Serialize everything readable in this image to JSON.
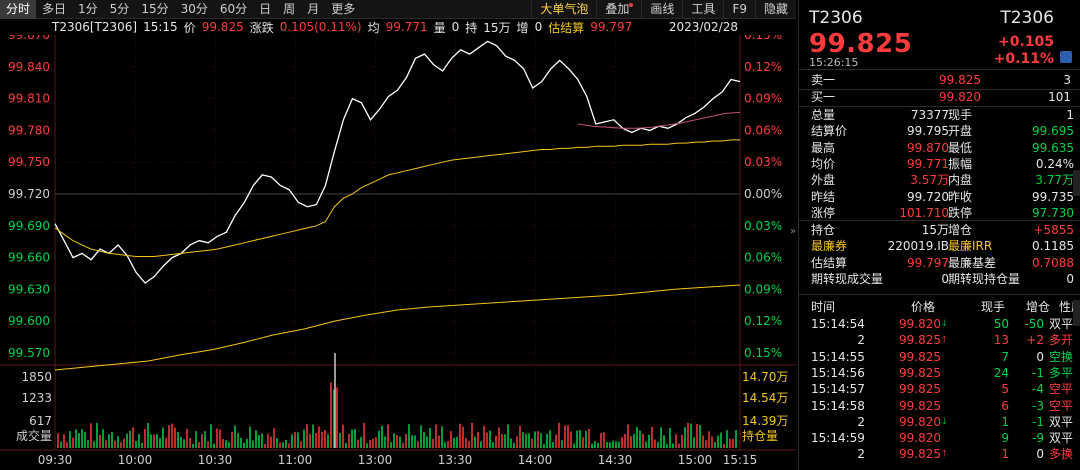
{
  "toolbar": {
    "left_tabs": [
      "分时",
      "多日",
      "1分",
      "5分",
      "15分",
      "30分",
      "60分",
      "日",
      "周",
      "月",
      "更多"
    ],
    "active_tab": "分时",
    "right_buttons": [
      "大单气泡",
      "叠加",
      "画线",
      "工具",
      "F9",
      "隐藏"
    ]
  },
  "info_strip": {
    "symbol": "T2306[T2306]",
    "time": "15:15",
    "price_label": "价",
    "price": "99.825",
    "change_label": "涨跌",
    "change": "0.105(0.11%)",
    "avg_label": "均",
    "avg": "99.771",
    "vol_label": "量",
    "vol": "0",
    "oi_label": "持",
    "oi": "15万",
    "inc_label": "增",
    "inc": "0",
    "est_label": "估结算",
    "est": "99.797",
    "date": "2023/02/28"
  },
  "chart_data": {
    "type": "line",
    "title": "",
    "x_ticks": [
      "09:30",
      "10:00",
      "10:30",
      "11:00",
      "13:00",
      "13:30",
      "14:00",
      "14:30",
      "15:00",
      "15:15"
    ],
    "price_axis": [
      "99.870",
      "99.840",
      "99.810",
      "99.780",
      "99.750",
      "99.720",
      "99.690",
      "99.660",
      "99.630",
      "99.600",
      "99.570"
    ],
    "pct_axis": [
      "0.15%",
      "0.12%",
      "0.09%",
      "0.06%",
      "0.03%",
      "0.00%",
      "0.03%",
      "0.06%",
      "0.09%",
      "0.12%",
      "0.15%"
    ],
    "prev_settle": 99.72,
    "ylim": [
      99.57,
      99.87
    ],
    "series": [
      {
        "name": "price",
        "color": "#ffffff",
        "values": [
          99.692,
          99.676,
          99.66,
          99.664,
          99.658,
          99.668,
          99.664,
          99.672,
          99.662,
          99.646,
          99.636,
          99.642,
          99.652,
          99.66,
          99.664,
          99.672,
          99.676,
          99.674,
          99.68,
          99.684,
          99.7,
          99.712,
          99.728,
          99.738,
          99.736,
          99.728,
          99.724,
          99.712,
          99.708,
          99.71,
          99.728,
          99.76,
          99.79,
          99.81,
          99.806,
          99.79,
          99.8,
          99.812,
          99.818,
          99.83,
          99.848,
          99.852,
          99.842,
          99.836,
          99.848,
          99.856,
          99.852,
          99.858,
          99.864,
          99.86,
          99.85,
          99.846,
          99.838,
          99.82,
          99.826,
          99.838,
          99.846,
          99.838,
          99.828,
          99.812,
          99.786,
          99.788,
          99.79,
          99.782,
          99.778,
          99.782,
          99.78,
          99.784,
          99.782,
          99.786,
          99.792,
          99.796,
          99.802,
          99.81,
          99.816,
          99.828,
          99.826
        ]
      },
      {
        "name": "avg",
        "color": "#f5c518",
        "values": [
          99.688,
          99.682,
          99.676,
          99.672,
          99.668,
          99.666,
          99.664,
          99.663,
          99.662,
          99.661,
          99.661,
          99.661,
          99.662,
          99.663,
          99.664,
          99.665,
          99.666,
          99.667,
          99.668,
          99.67,
          99.672,
          99.674,
          99.676,
          99.678,
          99.68,
          99.682,
          99.684,
          99.686,
          99.688,
          99.69,
          99.694,
          99.708,
          99.716,
          99.72,
          99.726,
          99.73,
          99.734,
          99.738,
          99.74,
          99.742,
          99.744,
          99.746,
          99.748,
          99.75,
          99.752,
          99.753,
          99.754,
          99.755,
          99.756,
          99.757,
          99.758,
          99.759,
          99.76,
          99.761,
          99.762,
          99.762,
          99.763,
          99.763,
          99.764,
          99.764,
          99.765,
          99.765,
          99.765,
          99.766,
          99.766,
          99.766,
          99.767,
          99.767,
          99.767,
          99.768,
          99.768,
          99.769,
          99.769,
          99.77,
          99.77,
          99.771,
          99.771
        ]
      },
      {
        "name": "est_settle",
        "color": "#c05078",
        "values": [
          99.786,
          99.784,
          99.783,
          99.782,
          99.782,
          99.783,
          99.785,
          99.787,
          99.79,
          99.793,
          99.796,
          99.797
        ]
      }
    ],
    "volume_axis": [
      "1850",
      "1233",
      "617",
      "成交量"
    ],
    "oi_axis": [
      "14.70万",
      "14.54万",
      "14.39万",
      "持仓量"
    ]
  },
  "panel": {
    "symbol_left": "T2306",
    "symbol_right": "T2306",
    "price": "99.825",
    "change": "+0.105",
    "change_pct": "+0.11%",
    "time": "15:26:15",
    "book": [
      {
        "label": "卖一",
        "price": "99.825",
        "qty": "3"
      },
      {
        "label": "买一",
        "price": "99.820",
        "qty": "101"
      }
    ],
    "stats": [
      {
        "l1": "总量",
        "v1": "73377",
        "c1": "white",
        "l2": "现手",
        "v2": "1",
        "c2": "white"
      },
      {
        "l1": "结算价",
        "v1": "99.795",
        "c1": "white",
        "l2": "开盘",
        "v2": "99.695",
        "c2": "green"
      },
      {
        "l1": "最高",
        "v1": "99.870",
        "c1": "red",
        "l2": "最低",
        "v2": "99.635",
        "c2": "green"
      },
      {
        "l1": "均价",
        "v1": "99.771",
        "c1": "red",
        "l2": "振幅",
        "v2": "0.24%",
        "c2": "white"
      },
      {
        "l1": "外盘",
        "v1": "3.57万",
        "c1": "red",
        "l2": "内盘",
        "v2": "3.77万",
        "c2": "green"
      },
      {
        "l1": "昨结",
        "v1": "99.720",
        "c1": "white",
        "l2": "昨收",
        "v2": "99.735",
        "c2": "white"
      },
      {
        "l1": "涨停",
        "v1": "101.710",
        "c1": "red",
        "l2": "跌停",
        "v2": "97.730",
        "c2": "green"
      }
    ],
    "stats2": [
      {
        "l1": "持仓",
        "v1": "15万",
        "c1": "white",
        "l2": "增仓",
        "v2": "+5855",
        "c2": "red"
      },
      {
        "l1": "最廉券",
        "v1": "220019.IB",
        "c1": "white",
        "l2": "最廉IRR",
        "v2": "0.1185",
        "c2": "white"
      },
      {
        "l1": "估结算",
        "v1": "99.797",
        "c1": "red",
        "l2": "最廉基差",
        "v2": "0.7088",
        "c2": "red"
      },
      {
        "l1": "期转现成交量",
        "v1": "0",
        "c1": "white",
        "l2": "期转现持仓量",
        "v2": "0",
        "c2": "white"
      }
    ],
    "trades_header": [
      "时间",
      "价格",
      "现手",
      "增仓",
      "性质"
    ],
    "trades": [
      {
        "t": "15:14:54",
        "p": "99.820",
        "a": "down",
        "q": "50",
        "qc": "green",
        "d": "-50",
        "dc": "green",
        "n": "双平",
        "nc": "white"
      },
      {
        "t": "2",
        "p": "99.825",
        "a": "up",
        "q": "13",
        "qc": "red",
        "d": "+2",
        "dc": "red",
        "n": "多开",
        "nc": "red"
      },
      {
        "t": "15:14:55",
        "p": "99.825",
        "a": "",
        "q": "7",
        "qc": "green",
        "d": "0",
        "dc": "white",
        "n": "空换",
        "nc": "green"
      },
      {
        "t": "15:14:56",
        "p": "99.825",
        "a": "",
        "q": "24",
        "qc": "green",
        "d": "-1",
        "dc": "green",
        "n": "多平",
        "nc": "green"
      },
      {
        "t": "15:14:57",
        "p": "99.825",
        "a": "",
        "q": "5",
        "qc": "red",
        "d": "-4",
        "dc": "green",
        "n": "空平",
        "nc": "red"
      },
      {
        "t": "15:14:58",
        "p": "99.825",
        "a": "",
        "q": "6",
        "qc": "red",
        "d": "-3",
        "dc": "green",
        "n": "空平",
        "nc": "red"
      },
      {
        "t": "2",
        "p": "99.820",
        "a": "down",
        "q": "1",
        "qc": "green",
        "d": "-1",
        "dc": "green",
        "n": "双平",
        "nc": "white"
      },
      {
        "t": "15:14:59",
        "p": "99.820",
        "a": "",
        "q": "9",
        "qc": "green",
        "d": "-9",
        "dc": "green",
        "n": "双平",
        "nc": "white"
      },
      {
        "t": "2",
        "p": "99.825",
        "a": "up",
        "q": "1",
        "qc": "red",
        "d": "0",
        "dc": "white",
        "n": "多换",
        "nc": "red"
      }
    ]
  }
}
